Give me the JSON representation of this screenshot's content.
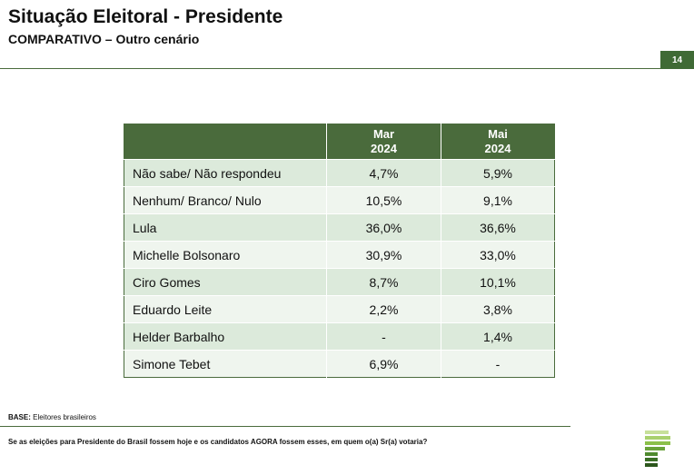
{
  "header": {
    "title": "Situação Eleitoral - Presidente",
    "subtitle": "COMPARATIVO – Outro cenário",
    "page_number": "14"
  },
  "table": {
    "columns": [
      {
        "month": "Mar",
        "year": "2024"
      },
      {
        "month": "Mai",
        "year": "2024"
      }
    ],
    "rows": [
      {
        "label": "Não sabe/ Não respondeu",
        "mar": "4,7%",
        "mai": "5,9%"
      },
      {
        "label": "Nenhum/ Branco/ Nulo",
        "mar": "10,5%",
        "mai": "9,1%"
      },
      {
        "label": "Lula",
        "mar": "36,0%",
        "mai": "36,6%"
      },
      {
        "label": "Michelle Bolsonaro",
        "mar": "30,9%",
        "mai": "33,0%"
      },
      {
        "label": "Ciro Gomes",
        "mar": "8,7%",
        "mai": "10,1%"
      },
      {
        "label": "Eduardo Leite",
        "mar": "2,2%",
        "mai": "3,8%"
      },
      {
        "label": "Helder Barbalho",
        "mar": "-",
        "mai": "1,4%"
      },
      {
        "label": "Simone Tebet",
        "mar": "6,9%",
        "mai": "-"
      }
    ]
  },
  "footer": {
    "base_label": "BASE:",
    "base_text": "Eleitores brasileiros",
    "question": "Se as eleições para Presidente do Brasil fossem hoje e os candidatos AGORA fossem esses, em quem o(a) Sr(a) votaria?"
  },
  "colors": {
    "brand_green": "#4a6b3c",
    "row_dark": "#dceadb",
    "row_light": "#eff5ee"
  }
}
